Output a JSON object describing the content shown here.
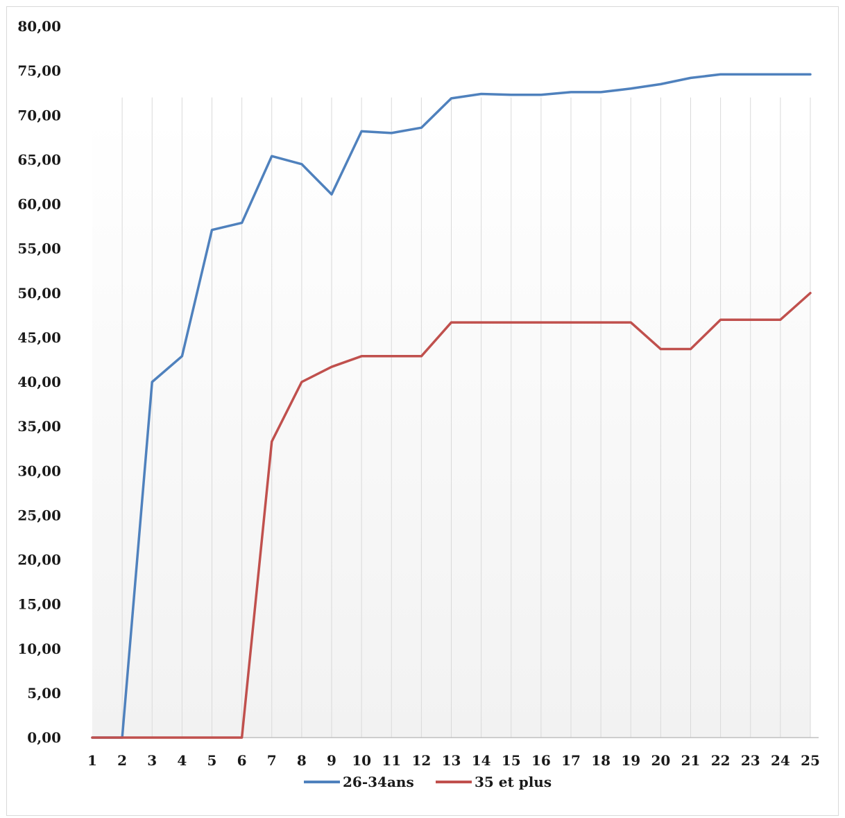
{
  "chart_data": {
    "type": "line",
    "title": "",
    "xlabel": "",
    "ylabel": "",
    "x": [
      1,
      2,
      3,
      4,
      5,
      6,
      7,
      8,
      9,
      10,
      11,
      12,
      13,
      14,
      15,
      16,
      17,
      18,
      19,
      20,
      21,
      22,
      23,
      24,
      25
    ],
    "x_tick_labels": [
      "1",
      "2",
      "3",
      "4",
      "5",
      "6",
      "7",
      "8",
      "9",
      "10",
      "11",
      "12",
      "13",
      "14",
      "15",
      "16",
      "17",
      "18",
      "19",
      "20",
      "21",
      "22",
      "23",
      "24",
      "25"
    ],
    "ylim": [
      0,
      80
    ],
    "y_tick_labels": [
      "0,00",
      "5,00",
      "10,00",
      "15,00",
      "20,00",
      "25,00",
      "30,00",
      "35,00",
      "40,00",
      "45,00",
      "50,00",
      "55,00",
      "60,00",
      "65,00",
      "70,00",
      "75,00",
      "80,00"
    ],
    "grid": "vertical",
    "legend_position": "bottom",
    "series": [
      {
        "name": "26-34ans",
        "color": "#4f81bd",
        "values": [
          0,
          0,
          40.0,
          42.9,
          57.1,
          57.9,
          65.4,
          64.5,
          61.1,
          68.2,
          68.0,
          68.6,
          71.9,
          72.4,
          72.3,
          72.3,
          72.6,
          72.6,
          73.0,
          73.5,
          74.2,
          74.6,
          74.6,
          74.6,
          74.6
        ]
      },
      {
        "name": "35 et plus",
        "color": "#c0504d",
        "values": [
          0,
          0,
          0,
          0,
          0,
          0,
          33.3,
          40.0,
          41.7,
          42.9,
          42.9,
          42.9,
          46.7,
          46.7,
          46.7,
          46.7,
          46.7,
          46.7,
          46.7,
          43.7,
          43.7,
          47.0,
          47.0,
          47.0,
          50.0
        ]
      }
    ]
  }
}
